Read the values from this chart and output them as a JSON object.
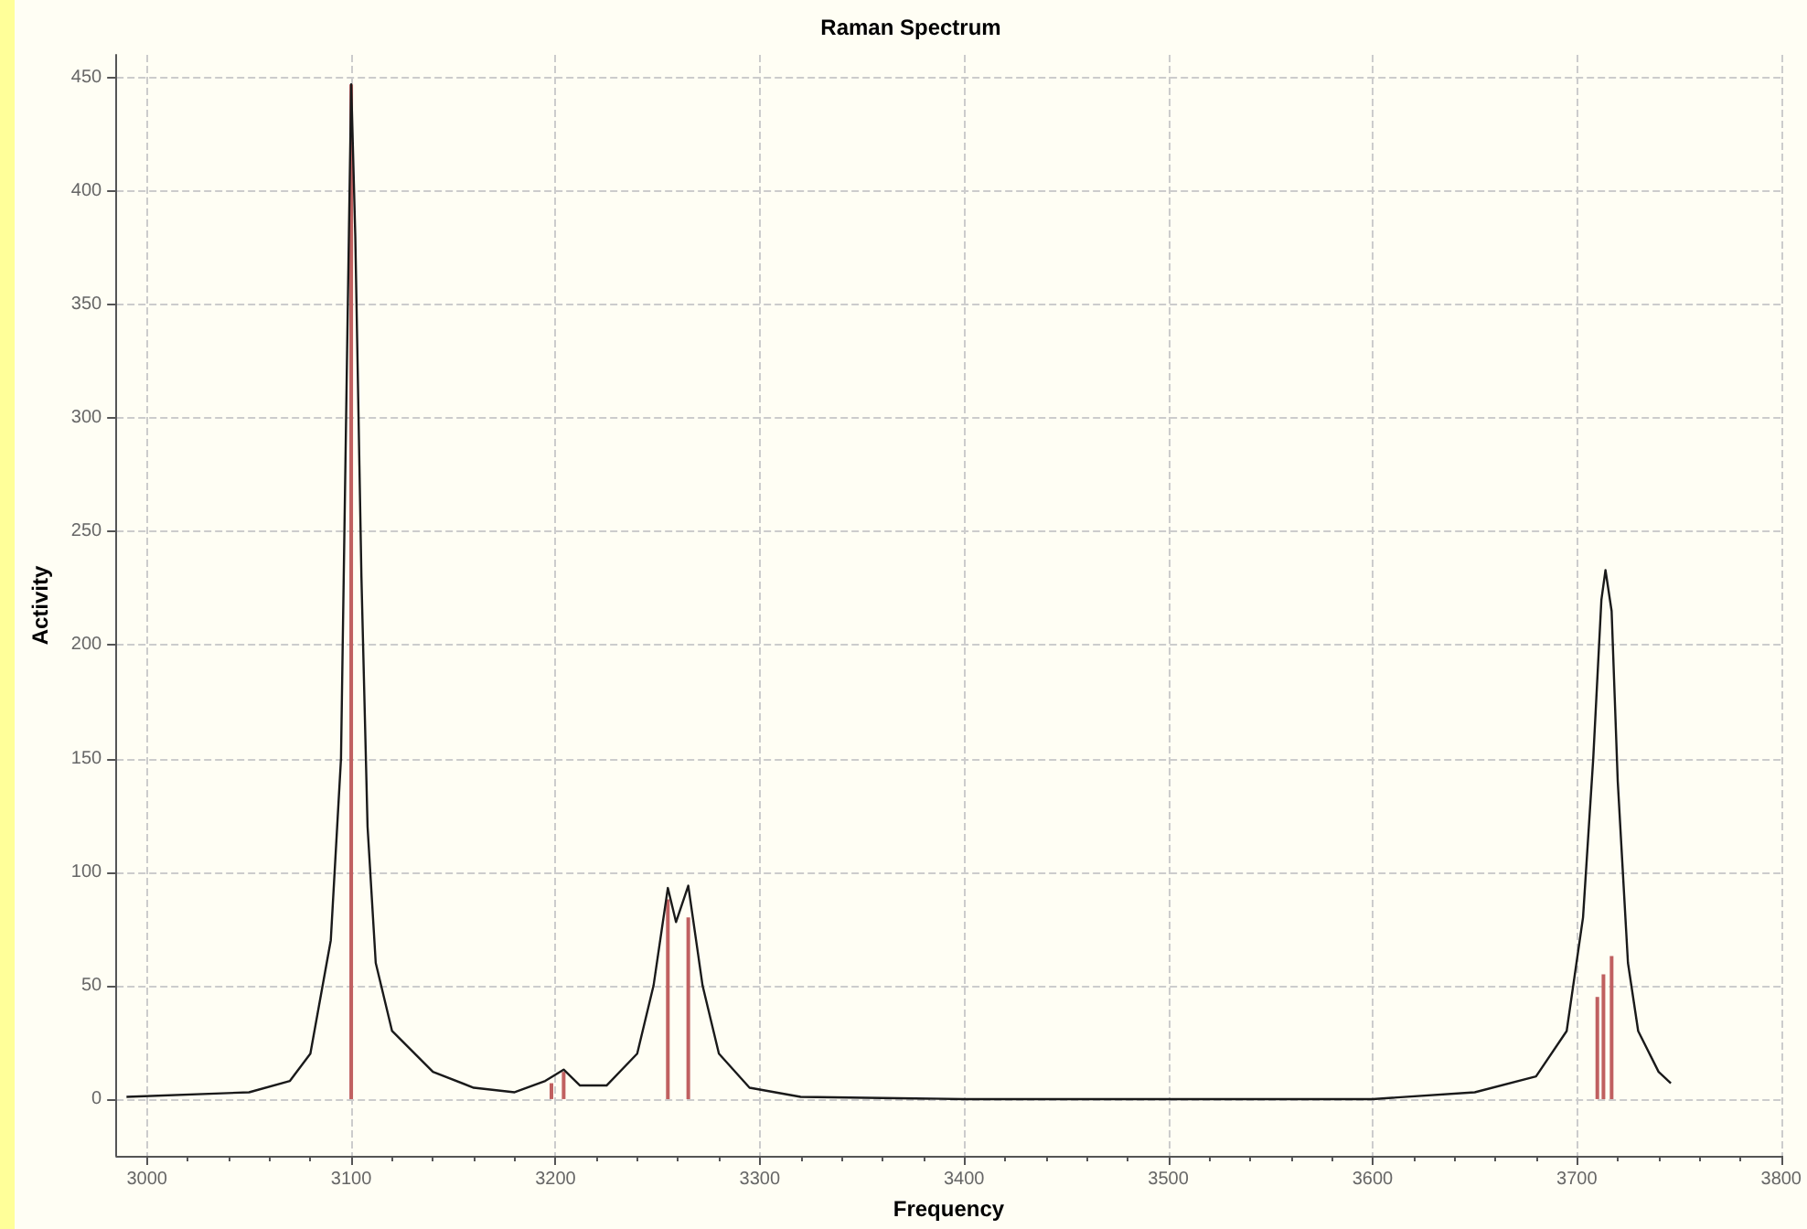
{
  "chart_data": {
    "type": "line",
    "title": "Raman Spectrum",
    "xlabel": "Frequency",
    "ylabel": "Activity",
    "xlim": [
      2985,
      3800
    ],
    "xticks": [
      3000,
      3100,
      3200,
      3300,
      3400,
      3500,
      3600,
      3700,
      3800
    ],
    "ylim": [
      -25,
      460
    ],
    "yticks": [
      0,
      50,
      100,
      150,
      200,
      250,
      300,
      350,
      400,
      450
    ],
    "grid": true,
    "marker": "none",
    "line_style": "solid",
    "series": [
      {
        "color": "#1a1a1a",
        "x": [
          2990,
          3050,
          3070,
          3080,
          3090,
          3095,
          3098,
          3100,
          3102,
          3105,
          3108,
          3112,
          3120,
          3140,
          3160,
          3180,
          3195,
          3204,
          3212,
          3225,
          3240,
          3248,
          3255,
          3259,
          3265,
          3272,
          3280,
          3295,
          3320,
          3400,
          3600,
          3650,
          3680,
          3695,
          3703,
          3708,
          3712,
          3714,
          3717,
          3720,
          3725,
          3730,
          3740,
          3746
        ],
        "values": [
          1,
          3,
          8,
          20,
          70,
          150,
          330,
          447,
          380,
          230,
          120,
          60,
          30,
          12,
          5,
          3,
          8,
          13,
          6,
          6,
          20,
          50,
          93,
          78,
          94,
          50,
          20,
          5,
          1,
          0,
          0,
          3,
          10,
          30,
          80,
          150,
          220,
          233,
          215,
          140,
          60,
          30,
          12,
          7
        ]
      },
      {
        "type": "bar",
        "color": "#c06060",
        "x": [
          3100,
          3198,
          3204,
          3255,
          3265,
          3710,
          3713,
          3717
        ],
        "values": [
          447,
          7,
          12,
          88,
          80,
          45,
          55,
          63
        ]
      }
    ]
  }
}
